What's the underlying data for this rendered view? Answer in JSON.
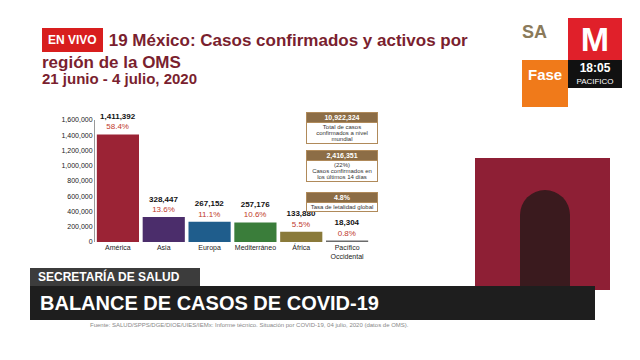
{
  "chart_data": {
    "type": "bar",
    "title": "19 México: Casos confirmados y activos por región de la OMS",
    "subtitle": "21 junio - 4 julio, 2020",
    "categories": [
      "América",
      "Asia",
      "Europa",
      "Mediterráneo",
      "África",
      "Pacífico Occidental"
    ],
    "values": [
      1411392,
      328447,
      267152,
      257176,
      133880,
      18304
    ],
    "value_labels": [
      "1,411,392",
      "328,447",
      "267,152",
      "257,176",
      "133,880",
      "18,304"
    ],
    "share_labels": [
      "58.4%",
      "13.6%",
      "11.1%",
      "10.6%",
      "5.5%",
      "0.8%"
    ],
    "colors": [
      "#9b2335",
      "#4b2d6b",
      "#1f5d8c",
      "#3a7d3a",
      "#8a7a3a",
      "#6b6b6b"
    ],
    "ylim": [
      0,
      1600000
    ],
    "yticks": [
      0,
      {
        "value": 200000,
        "label": "200,000"
      },
      {
        "value": 400000,
        "label": "400,000"
      },
      {
        "value": 600000,
        "label": "600,000"
      },
      {
        "value": 800000,
        "label": "800,000"
      },
      {
        "value": 1000000,
        "label": "1,000,000"
      },
      {
        "value": 1200000,
        "label": "1,200,000"
      },
      {
        "value": 1400000,
        "label": "1,400,000"
      },
      {
        "value": 1600000,
        "label": "1,600,000"
      }
    ],
    "grid": false,
    "data_labels": true,
    "notes": [
      {
        "value": "10,922,324",
        "text": "Total de casos confirmados a nivel mundial"
      },
      {
        "value": "2,416,351",
        "share": "(22%)",
        "text": "Casos confirmados en los últimos 14 días"
      },
      {
        "value": "4.8%",
        "text": "Tasa de letalidad global"
      }
    ],
    "source": "Fuente: SALUD/SPPS/DGE/DIOE/UIES/IEMx: Informe técnico. Situación por COVID-19, 04 julio, 2020 (datos de OMS)."
  },
  "screen": {
    "live": "EN VIVO",
    "logo_text": "SA",
    "channel": "M",
    "time": "18:05",
    "zone": "PACIFICO",
    "phase": "Fase",
    "lower_third_label": "SECRETARÍA DE SALUD",
    "lower_third_title": "BALANCE DE CASOS DE COVID-19"
  }
}
